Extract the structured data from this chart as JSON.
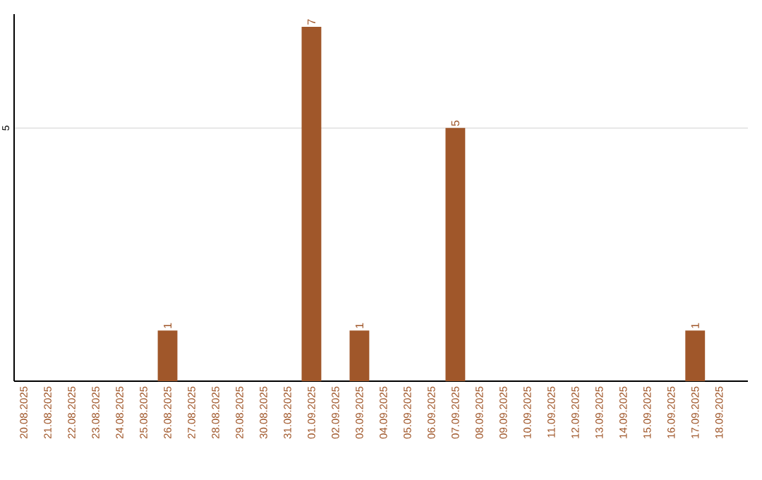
{
  "chart_data": {
    "type": "bar",
    "categories": [
      "20.08.2025",
      "21.08.2025",
      "22.08.2025",
      "23.08.2025",
      "24.08.2025",
      "25.08.2025",
      "26.08.2025",
      "27.08.2025",
      "28.08.2025",
      "29.08.2025",
      "30.08.2025",
      "31.08.2025",
      "01.09.2025",
      "02.09.2025",
      "03.09.2025",
      "04.09.2025",
      "05.09.2025",
      "06.09.2025",
      "07.09.2025",
      "08.09.2025",
      "09.09.2025",
      "10.09.2025",
      "11.09.2025",
      "12.09.2025",
      "13.09.2025",
      "14.09.2025",
      "15.09.2025",
      "16.09.2025",
      "17.09.2025",
      "18.09.2025"
    ],
    "values": [
      0,
      0,
      0,
      0,
      0,
      0,
      1,
      0,
      0,
      0,
      0,
      0,
      7,
      0,
      1,
      0,
      0,
      0,
      5,
      0,
      0,
      0,
      0,
      0,
      0,
      0,
      0,
      0,
      1,
      0
    ],
    "value_labels": [
      null,
      null,
      null,
      null,
      null,
      null,
      "1",
      null,
      null,
      null,
      null,
      null,
      "7",
      null,
      "1",
      null,
      null,
      null,
      "5",
      null,
      null,
      null,
      null,
      null,
      null,
      null,
      null,
      null,
      "1",
      null
    ],
    "color": "#a0572a",
    "ylim": [
      0,
      7.25
    ],
    "yticks": [
      5
    ],
    "grid": "y"
  }
}
